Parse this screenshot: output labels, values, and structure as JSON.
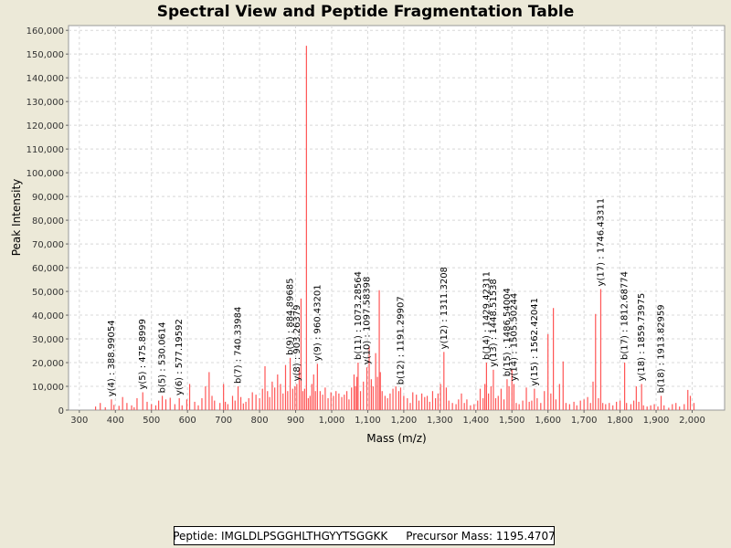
{
  "chart_data": {
    "type": "bar",
    "title": "Spectral View and Peptide Fragmentation Table",
    "xlabel": "Mass (m/z)",
    "ylabel": "Peak Intensity",
    "xlim": [
      270,
      2090
    ],
    "ylim": [
      0,
      162000
    ],
    "x_ticks": [
      "300",
      "400",
      "500",
      "600",
      "700",
      "800",
      "900",
      "1,000",
      "1,100",
      "1,200",
      "1,300",
      "1,400",
      "1,500",
      "1,600",
      "1,700",
      "1,800",
      "1,900",
      "2,000"
    ],
    "y_ticks": [
      "0",
      "10,000",
      "20,000",
      "30,000",
      "40,000",
      "50,000",
      "60,000",
      "70,000",
      "80,000",
      "90,000",
      "100,000",
      "110,000",
      "120,000",
      "130,000",
      "140,000",
      "150,000",
      "160,000"
    ],
    "grid": true,
    "bar_color": "#ff5555",
    "peaks": [
      [
        345,
        1500
      ],
      [
        358,
        3000
      ],
      [
        372,
        1200
      ],
      [
        388.99,
        4500
      ],
      [
        396,
        2200
      ],
      [
        410,
        1800
      ],
      [
        420,
        5500
      ],
      [
        432,
        3000
      ],
      [
        445,
        2000
      ],
      [
        452,
        1200
      ],
      [
        460,
        5000
      ],
      [
        475.9,
        7500
      ],
      [
        488,
        3500
      ],
      [
        500,
        2500
      ],
      [
        512,
        2000
      ],
      [
        520,
        4000
      ],
      [
        530.06,
        6000
      ],
      [
        540,
        4500
      ],
      [
        552,
        5200
      ],
      [
        565,
        2500
      ],
      [
        577.2,
        5000
      ],
      [
        585,
        2000
      ],
      [
        598,
        4500
      ],
      [
        606,
        11000
      ],
      [
        620,
        3500
      ],
      [
        630,
        2000
      ],
      [
        640,
        5000
      ],
      [
        650,
        10000
      ],
      [
        660,
        16000
      ],
      [
        668,
        6000
      ],
      [
        675,
        4000
      ],
      [
        690,
        3000
      ],
      [
        700,
        11000
      ],
      [
        705,
        3500
      ],
      [
        712,
        2500
      ],
      [
        725,
        6000
      ],
      [
        732,
        4000
      ],
      [
        740.34,
        10000
      ],
      [
        748,
        5500
      ],
      [
        755,
        2800
      ],
      [
        762,
        3500
      ],
      [
        770,
        5000
      ],
      [
        780,
        7500
      ],
      [
        790,
        6500
      ],
      [
        800,
        5000
      ],
      [
        808,
        9000
      ],
      [
        815,
        18500
      ],
      [
        822,
        8000
      ],
      [
        828,
        5500
      ],
      [
        835,
        12000
      ],
      [
        842,
        9500
      ],
      [
        850,
        15000
      ],
      [
        858,
        11000
      ],
      [
        865,
        7000
      ],
      [
        872,
        19000
      ],
      [
        878,
        8000
      ],
      [
        884.9,
        22000
      ],
      [
        892,
        9000
      ],
      [
        898,
        10000
      ],
      [
        903.26,
        11000
      ],
      [
        910,
        18000
      ],
      [
        915,
        47000
      ],
      [
        920,
        8000
      ],
      [
        925,
        9000
      ],
      [
        930,
        153500
      ],
      [
        935,
        5000
      ],
      [
        940,
        6000
      ],
      [
        945,
        11000
      ],
      [
        950,
        15000
      ],
      [
        955,
        8000
      ],
      [
        960.43,
        19500
      ],
      [
        968,
        8000
      ],
      [
        975,
        6500
      ],
      [
        982,
        9500
      ],
      [
        990,
        5000
      ],
      [
        998,
        7500
      ],
      [
        1005,
        6000
      ],
      [
        1012,
        8000
      ],
      [
        1020,
        7000
      ],
      [
        1028,
        5500
      ],
      [
        1035,
        6500
      ],
      [
        1042,
        8000
      ],
      [
        1048,
        4500
      ],
      [
        1055,
        9500
      ],
      [
        1062,
        15000
      ],
      [
        1066,
        10000
      ],
      [
        1070,
        14000
      ],
      [
        1073.29,
        20000
      ],
      [
        1080,
        8000
      ],
      [
        1088,
        12000
      ],
      [
        1097.58,
        18000
      ],
      [
        1104,
        27000
      ],
      [
        1110,
        13000
      ],
      [
        1115,
        10000
      ],
      [
        1122,
        24000
      ],
      [
        1127,
        14000
      ],
      [
        1132,
        50500
      ],
      [
        1135,
        16000
      ],
      [
        1140,
        8000
      ],
      [
        1148,
        6000
      ],
      [
        1155,
        5000
      ],
      [
        1162,
        7000
      ],
      [
        1170,
        9000
      ],
      [
        1178,
        10000
      ],
      [
        1186,
        8000
      ],
      [
        1191.3,
        9500
      ],
      [
        1200,
        6000
      ],
      [
        1210,
        5000
      ],
      [
        1218,
        3000
      ],
      [
        1225,
        7500
      ],
      [
        1235,
        6500
      ],
      [
        1242,
        4000
      ],
      [
        1250,
        7000
      ],
      [
        1258,
        5500
      ],
      [
        1265,
        6000
      ],
      [
        1272,
        3500
      ],
      [
        1280,
        8000
      ],
      [
        1288,
        5000
      ],
      [
        1295,
        7000
      ],
      [
        1302,
        11000
      ],
      [
        1311.32,
        24500
      ],
      [
        1318,
        9500
      ],
      [
        1325,
        4000
      ],
      [
        1335,
        3000
      ],
      [
        1345,
        2500
      ],
      [
        1352,
        4500
      ],
      [
        1360,
        7000
      ],
      [
        1368,
        3000
      ],
      [
        1375,
        4500
      ],
      [
        1385,
        2000
      ],
      [
        1395,
        2500
      ],
      [
        1405,
        4000
      ],
      [
        1412,
        9000
      ],
      [
        1420,
        5000
      ],
      [
        1425,
        11000
      ],
      [
        1429.42,
        20000
      ],
      [
        1435,
        7000
      ],
      [
        1442,
        10000
      ],
      [
        1448.52,
        17000
      ],
      [
        1455,
        5000
      ],
      [
        1462,
        6000
      ],
      [
        1470,
        9000
      ],
      [
        1478,
        4500
      ],
      [
        1486.54,
        13000
      ],
      [
        1492,
        10000
      ],
      [
        1500,
        17000
      ],
      [
        1505.5,
        11000
      ],
      [
        1512,
        3000
      ],
      [
        1520,
        2500
      ],
      [
        1530,
        4000
      ],
      [
        1540,
        9500
      ],
      [
        1548,
        3500
      ],
      [
        1555,
        4000
      ],
      [
        1562.42,
        9000
      ],
      [
        1570,
        5000
      ],
      [
        1580,
        3000
      ],
      [
        1590,
        8000
      ],
      [
        1600,
        32000
      ],
      [
        1608,
        7000
      ],
      [
        1615,
        43000
      ],
      [
        1622,
        4500
      ],
      [
        1632,
        11000
      ],
      [
        1642,
        20500
      ],
      [
        1650,
        3000
      ],
      [
        1660,
        2500
      ],
      [
        1672,
        3500
      ],
      [
        1680,
        2000
      ],
      [
        1690,
        4000
      ],
      [
        1700,
        4500
      ],
      [
        1710,
        5500
      ],
      [
        1718,
        3000
      ],
      [
        1725,
        12000
      ],
      [
        1732,
        40500
      ],
      [
        1740,
        5000
      ],
      [
        1746.43,
        51000
      ],
      [
        1752,
        3000
      ],
      [
        1760,
        2500
      ],
      [
        1770,
        3000
      ],
      [
        1780,
        2000
      ],
      [
        1790,
        3500
      ],
      [
        1800,
        4000
      ],
      [
        1812.69,
        20000
      ],
      [
        1818,
        3000
      ],
      [
        1830,
        2500
      ],
      [
        1838,
        4000
      ],
      [
        1845,
        10000
      ],
      [
        1852,
        3500
      ],
      [
        1859.74,
        11000
      ],
      [
        1865,
        2000
      ],
      [
        1875,
        1500
      ],
      [
        1885,
        2000
      ],
      [
        1895,
        2500
      ],
      [
        1905,
        1500
      ],
      [
        1913.83,
        6000
      ],
      [
        1922,
        2000
      ],
      [
        1935,
        1000
      ],
      [
        1945,
        2500
      ],
      [
        1955,
        3000
      ],
      [
        1965,
        1500
      ],
      [
        1978,
        2500
      ],
      [
        1988,
        8500
      ],
      [
        1995,
        6000
      ],
      [
        2005,
        3000
      ]
    ],
    "annotations": [
      {
        "label": "y(4) : 388.99054",
        "x": 388.99
      },
      {
        "label": "y(5) : 475.8999",
        "x": 475.9
      },
      {
        "label": "b(5) : 530.0614",
        "x": 530.06
      },
      {
        "label": "y(6) : 577.19592",
        "x": 577.2
      },
      {
        "label": "b(7) : 740.33984",
        "x": 740.34
      },
      {
        "label": "b(9) : 884.89685",
        "x": 884.9
      },
      {
        "label": "y(8) : 903.26379",
        "x": 903.26
      },
      {
        "label": "y(9) : 960.43201",
        "x": 960.43
      },
      {
        "label": "b(11) : 1073.28564",
        "x": 1073.29
      },
      {
        "label": "y(10) : 1097.58398",
        "x": 1097.58
      },
      {
        "label": "b(12) : 1191.29907",
        "x": 1191.3
      },
      {
        "label": "y(12) : 1311.3208",
        "x": 1311.32
      },
      {
        "label": "b(14) : 1429.42311",
        "x": 1429.42
      },
      {
        "label": "y(13) : 1448.51538",
        "x": 1448.52
      },
      {
        "label": "b(15) : 1486.54004",
        "x": 1486.54
      },
      {
        "label": "y(14) : 1505.50244",
        "x": 1505.5
      },
      {
        "label": "y(15) : 1562.42041",
        "x": 1562.42
      },
      {
        "label": "y(17) : 1746.43311",
        "x": 1746.43
      },
      {
        "label": "b(17) : 1812.68774",
        "x": 1812.69
      },
      {
        "label": "y(18) : 1859.73975",
        "x": 1859.74
      },
      {
        "label": "b(18) : 1913.82959",
        "x": 1913.83
      }
    ]
  },
  "footer": {
    "peptide": "Peptide: IMGLDLPSGGHLTHGYYTSGGKK",
    "precursor": "Precursor Mass: 1195.4707"
  }
}
